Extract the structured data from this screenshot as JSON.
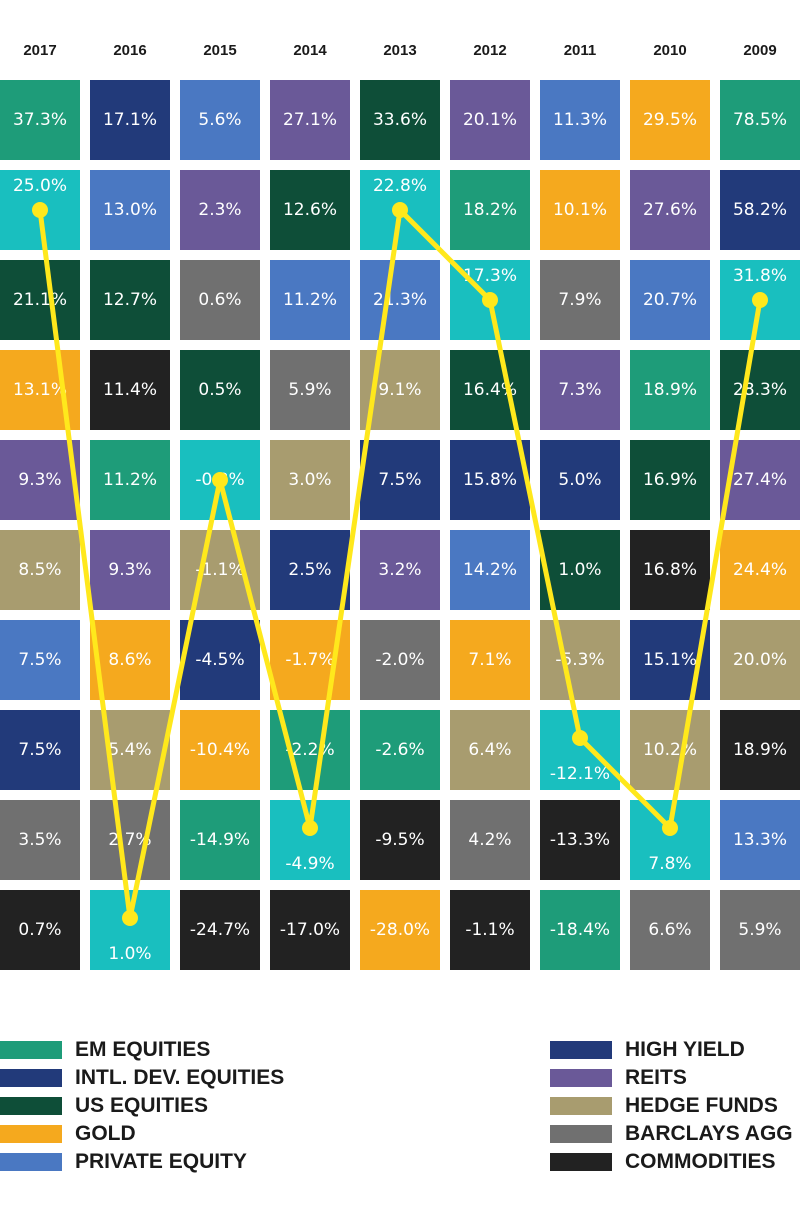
{
  "chart_data": {
    "type": "table",
    "years": [
      "2017",
      "2016",
      "2015",
      "2014",
      "2013",
      "2012",
      "2011",
      "2010",
      "2009"
    ],
    "asset_classes": {
      "em": {
        "name": "EM EQUITIES",
        "color": "#1e9c79"
      },
      "intl": {
        "name": "INTL. DEV. EQUITIES",
        "color": "#223a7a"
      },
      "us": {
        "name": "US EQUITIES",
        "color": "#0e4e38"
      },
      "gold": {
        "name": "GOLD",
        "color": "#f5a91e"
      },
      "pe": {
        "name": "PRIVATE EQUITY",
        "color": "#4a78c2"
      },
      "hy": {
        "name": "HIGH YIELD",
        "color": "#223a7a"
      },
      "reits": {
        "name": "REITS",
        "color": "#6a5998"
      },
      "hedge": {
        "name": "HEDGE FUNDS",
        "color": "#a89c6f"
      },
      "agg": {
        "name": "BARCLAYS AGG",
        "color": "#707070"
      },
      "comm": {
        "name": "COMMODITIES",
        "color": "#222222"
      },
      "highlight": {
        "name": "",
        "color": "#19bfbf"
      }
    },
    "columns": [
      {
        "year": "2017",
        "cells": [
          {
            "v": "37.3%",
            "c": "em"
          },
          {
            "v": "25.0%",
            "c": "highlight"
          },
          {
            "v": "21.1%",
            "c": "us"
          },
          {
            "v": "13.1%",
            "c": "gold"
          },
          {
            "v": "9.3%",
            "c": "reits"
          },
          {
            "v": "8.5%",
            "c": "hedge"
          },
          {
            "v": "7.5%",
            "c": "pe"
          },
          {
            "v": "7.5%",
            "c": "hy"
          },
          {
            "v": "3.5%",
            "c": "agg"
          },
          {
            "v": "0.7%",
            "c": "comm"
          }
        ]
      },
      {
        "year": "2016",
        "cells": [
          {
            "v": "17.1%",
            "c": "hy"
          },
          {
            "v": "13.0%",
            "c": "pe"
          },
          {
            "v": "12.7%",
            "c": "us"
          },
          {
            "v": "11.4%",
            "c": "comm"
          },
          {
            "v": "11.2%",
            "c": "em"
          },
          {
            "v": "9.3%",
            "c": "reits"
          },
          {
            "v": "8.6%",
            "c": "gold"
          },
          {
            "v": "5.4%",
            "c": "hedge"
          },
          {
            "v": "2.7%",
            "c": "agg"
          },
          {
            "v": "1.0%",
            "c": "highlight"
          }
        ]
      },
      {
        "year": "2015",
        "cells": [
          {
            "v": "5.6%",
            "c": "pe"
          },
          {
            "v": "2.3%",
            "c": "reits"
          },
          {
            "v": "0.6%",
            "c": "agg"
          },
          {
            "v": "0.5%",
            "c": "us"
          },
          {
            "v": "-0.8%",
            "c": "highlight"
          },
          {
            "v": "-1.1%",
            "c": "hedge"
          },
          {
            "v": "-4.5%",
            "c": "hy"
          },
          {
            "v": "-10.4%",
            "c": "gold"
          },
          {
            "v": "-14.9%",
            "c": "em"
          },
          {
            "v": "-24.7%",
            "c": "comm"
          }
        ]
      },
      {
        "year": "2014",
        "cells": [
          {
            "v": "27.1%",
            "c": "reits"
          },
          {
            "v": "12.6%",
            "c": "us"
          },
          {
            "v": "11.2%",
            "c": "pe"
          },
          {
            "v": "5.9%",
            "c": "agg"
          },
          {
            "v": "3.0%",
            "c": "hedge"
          },
          {
            "v": "2.5%",
            "c": "hy"
          },
          {
            "v": "-1.7%",
            "c": "gold"
          },
          {
            "v": "-2.2%",
            "c": "em"
          },
          {
            "v": "-4.9%",
            "c": "highlight"
          },
          {
            "v": "-17.0%",
            "c": "comm"
          }
        ]
      },
      {
        "year": "2013",
        "cells": [
          {
            "v": "33.6%",
            "c": "us"
          },
          {
            "v": "22.8%",
            "c": "highlight"
          },
          {
            "v": "21.3%",
            "c": "pe"
          },
          {
            "v": "9.1%",
            "c": "hedge"
          },
          {
            "v": "7.5%",
            "c": "hy"
          },
          {
            "v": "3.2%",
            "c": "reits"
          },
          {
            "v": "-2.0%",
            "c": "agg"
          },
          {
            "v": "-2.6%",
            "c": "em"
          },
          {
            "v": "-9.5%",
            "c": "comm"
          },
          {
            "v": "-28.0%",
            "c": "gold"
          }
        ]
      },
      {
        "year": "2012",
        "cells": [
          {
            "v": "20.1%",
            "c": "reits"
          },
          {
            "v": "18.2%",
            "c": "em"
          },
          {
            "v": "17.3%",
            "c": "highlight"
          },
          {
            "v": "16.4%",
            "c": "us"
          },
          {
            "v": "15.8%",
            "c": "hy"
          },
          {
            "v": "14.2%",
            "c": "pe"
          },
          {
            "v": "7.1%",
            "c": "gold"
          },
          {
            "v": "6.4%",
            "c": "hedge"
          },
          {
            "v": "4.2%",
            "c": "agg"
          },
          {
            "v": "-1.1%",
            "c": "comm"
          }
        ]
      },
      {
        "year": "2011",
        "cells": [
          {
            "v": "11.3%",
            "c": "pe"
          },
          {
            "v": "10.1%",
            "c": "gold"
          },
          {
            "v": "7.9%",
            "c": "agg"
          },
          {
            "v": "7.3%",
            "c": "reits"
          },
          {
            "v": "5.0%",
            "c": "hy"
          },
          {
            "v": "1.0%",
            "c": "us"
          },
          {
            "v": "-5.3%",
            "c": "hedge"
          },
          {
            "v": "-12.1%",
            "c": "highlight"
          },
          {
            "v": "-13.3%",
            "c": "comm"
          },
          {
            "v": "-18.4%",
            "c": "em"
          }
        ]
      },
      {
        "year": "2010",
        "cells": [
          {
            "v": "29.5%",
            "c": "gold"
          },
          {
            "v": "27.6%",
            "c": "reits"
          },
          {
            "v": "20.7%",
            "c": "pe"
          },
          {
            "v": "18.9%",
            "c": "em"
          },
          {
            "v": "16.9%",
            "c": "us"
          },
          {
            "v": "16.8%",
            "c": "comm"
          },
          {
            "v": "15.1%",
            "c": "hy"
          },
          {
            "v": "10.2%",
            "c": "hedge"
          },
          {
            "v": "7.8%",
            "c": "highlight"
          },
          {
            "v": "6.6%",
            "c": "agg"
          }
        ]
      },
      {
        "year": "2009",
        "cells": [
          {
            "v": "78.5%",
            "c": "em"
          },
          {
            "v": "58.2%",
            "c": "hy"
          },
          {
            "v": "31.8%",
            "c": "highlight"
          },
          {
            "v": "28.3%",
            "c": "us"
          },
          {
            "v": "27.4%",
            "c": "reits"
          },
          {
            "v": "24.4%",
            "c": "gold"
          },
          {
            "v": "20.0%",
            "c": "hedge"
          },
          {
            "v": "18.9%",
            "c": "comm"
          },
          {
            "v": "13.3%",
            "c": "pe"
          },
          {
            "v": "5.9%",
            "c": "agg"
          }
        ]
      }
    ],
    "highlight_line": {
      "color": "#ffe81c",
      "values": [
        "25.0%",
        "1.0%",
        "-0.8%",
        "-4.9%",
        "22.8%",
        "17.3%",
        "-12.1%",
        "7.8%",
        "31.8%"
      ]
    }
  },
  "legend": {
    "left": [
      {
        "label": "EM EQUITIES",
        "color": "#1e9c79"
      },
      {
        "label": "INTL. DEV. EQUITIES",
        "color": "#223a7a"
      },
      {
        "label": "US EQUITIES",
        "color": "#0e4e38"
      },
      {
        "label": "GOLD",
        "color": "#f5a91e"
      },
      {
        "label": "PRIVATE EQUITY",
        "color": "#4a78c2"
      }
    ],
    "right": [
      {
        "label": "HIGH YIELD",
        "color": "#223a7a"
      },
      {
        "label": "REITS",
        "color": "#6a5998"
      },
      {
        "label": "HEDGE FUNDS",
        "color": "#a89c6f"
      },
      {
        "label": "BARCLAYS AGG",
        "color": "#707070"
      },
      {
        "label": "COMMODITIES",
        "color": "#222222"
      }
    ]
  }
}
